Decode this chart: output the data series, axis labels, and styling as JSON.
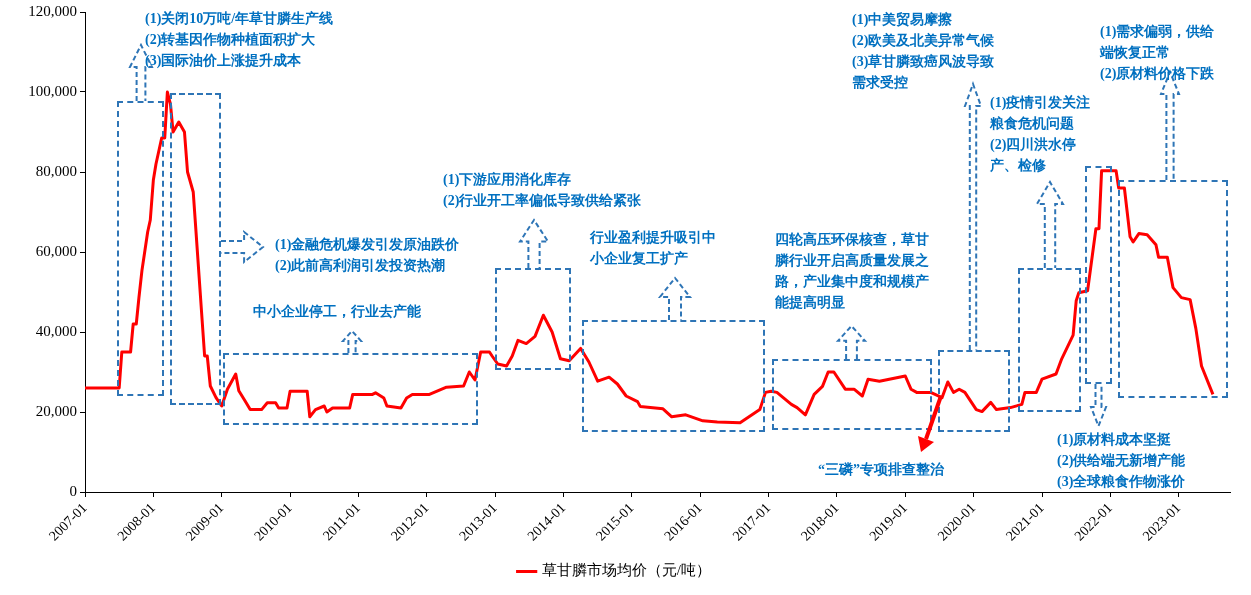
{
  "chart_data": {
    "type": "line",
    "x": [
      "2007-01-01",
      "2007-07-01",
      "2007-07-15",
      "2007-09-01",
      "2007-09-15",
      "2007-10-01",
      "2007-10-15",
      "2007-11-01",
      "2007-12-01",
      "2007-12-15",
      "2008-01-01",
      "2008-01-15",
      "2008-02-15",
      "2008-03-01",
      "2008-03-15",
      "2008-04-01",
      "2008-04-15",
      "2008-05-15",
      "2008-06-15",
      "2008-07-01",
      "2008-08-01",
      "2008-08-15",
      "2008-09-15",
      "2008-10-01",
      "2008-10-15",
      "2008-11-01",
      "2008-12-01",
      "2009-01-01",
      "2009-02-01",
      "2009-03-15",
      "2009-04-01",
      "2009-05-01",
      "2009-06-01",
      "2009-08-01",
      "2009-09-01",
      "2009-10-15",
      "2009-11-01",
      "2009-12-15",
      "2010-01-01",
      "2010-04-01",
      "2010-04-15",
      "2010-05-15",
      "2010-07-01",
      "2010-07-15",
      "2010-08-15",
      "2010-11-15",
      "2010-12-01",
      "2011-03-15",
      "2011-04-01",
      "2011-05-15",
      "2011-06-01",
      "2011-08-15",
      "2011-09-15",
      "2011-10-15",
      "2012-01-15",
      "2012-04-15",
      "2012-07-15",
      "2012-08-15",
      "2012-09-15",
      "2012-10-15",
      "2012-12-01",
      "2012-12-15",
      "2013-01-15",
      "2013-03-01",
      "2013-04-01",
      "2013-05-01",
      "2013-06-15",
      "2013-08-01",
      "2013-09-15",
      "2013-11-01",
      "2013-12-15",
      "2014-02-01",
      "2014-04-01",
      "2014-05-15",
      "2014-07-01",
      "2014-09-01",
      "2014-10-15",
      "2014-12-01",
      "2015-02-01",
      "2015-02-15",
      "2015-06-15",
      "2015-08-01",
      "2015-10-15",
      "2016-01-15",
      "2016-04-01",
      "2016-08-01",
      "2016-11-15",
      "2016-12-15",
      "2017-01-15",
      "2017-02-15",
      "2017-05-01",
      "2017-06-01",
      "2017-07-15",
      "2017-09-01",
      "2017-10-15",
      "2017-11-15",
      "2017-12-15",
      "2018-02-15",
      "2018-04-01",
      "2018-05-15",
      "2018-06-15",
      "2018-08-15",
      "2019-01-01",
      "2019-02-01",
      "2019-03-01",
      "2019-05-15",
      "2019-07-15",
      "2019-08-15",
      "2019-09-15",
      "2019-10-15",
      "2019-11-15",
      "2020-01-15",
      "2020-02-15",
      "2020-04-01",
      "2020-05-01",
      "2020-07-15",
      "2020-09-15",
      "2020-10-01",
      "2020-12-01",
      "2021-01-01",
      "2021-03-15",
      "2021-04-15",
      "2021-06-15",
      "2021-07-01",
      "2021-07-15",
      "2021-09-01",
      "2021-10-15",
      "2021-11-01",
      "2021-11-15",
      "2022-02-01",
      "2022-02-15",
      "2022-03-15",
      "2022-04-15",
      "2022-05-01",
      "2022-06-01",
      "2022-07-15",
      "2022-09-01",
      "2022-09-15",
      "2022-11-01",
      "2022-12-01",
      "2023-01-15",
      "2023-03-01",
      "2023-04-01",
      "2023-05-01",
      "2023-07-01"
    ],
    "series": [
      {
        "name": "草甘膦市场均价（元/吨）",
        "color": "#ff0000",
        "values": [
          26000,
          26000,
          35000,
          35000,
          42000,
          42000,
          48500,
          55400,
          65000,
          68000,
          78000,
          82000,
          88500,
          88500,
          100000,
          97000,
          90000,
          92500,
          90000,
          80000,
          75000,
          65600,
          45000,
          34000,
          34000,
          26500,
          23600,
          21500,
          25700,
          29500,
          25300,
          23000,
          20600,
          20600,
          22300,
          22300,
          21000,
          21000,
          25200,
          25200,
          18800,
          20600,
          21500,
          20000,
          21000,
          21000,
          24400,
          24400,
          24800,
          23500,
          21500,
          21000,
          23500,
          24400,
          24400,
          26200,
          26500,
          30000,
          28000,
          35000,
          35000,
          34000,
          32000,
          31500,
          34000,
          37900,
          37100,
          38900,
          44200,
          40000,
          33300,
          32800,
          35900,
          32500,
          27700,
          28700,
          27000,
          24000,
          22600,
          21400,
          20800,
          18800,
          19300,
          17800,
          17500,
          17300,
          20600,
          24900,
          25200,
          24900,
          21900,
          21100,
          19300,
          24400,
          26400,
          30000,
          30000,
          25700,
          25700,
          24000,
          28200,
          27700,
          29000,
          25700,
          24900,
          24900,
          23600,
          27500,
          24900,
          25700,
          24900,
          20600,
          20100,
          22400,
          20600,
          21100,
          21900,
          24900,
          24900,
          28200,
          29500,
          33300,
          39200,
          47800,
          49800,
          50300,
          65800,
          65800,
          80300,
          80300,
          76000,
          76000,
          63800,
          62500,
          64600,
          64300,
          61800,
          58700,
          58700,
          51100,
          48600,
          48100,
          40900,
          31500,
          24400
        ]
      }
    ],
    "xlim": [
      "2007-01",
      "2023-10"
    ],
    "xticks": [
      "2007-01",
      "2008-01",
      "2009-01",
      "2010-01",
      "2011-01",
      "2012-01",
      "2013-01",
      "2014-01",
      "2015-01",
      "2016-01",
      "2017-01",
      "2018-01",
      "2019-01",
      "2020-01",
      "2021-01",
      "2022-01",
      "2023-01"
    ],
    "ylim": [
      0,
      120000
    ],
    "yticks": [
      {
        "value": 0,
        "label": "0"
      },
      {
        "value": 20000,
        "label": "20,000"
      },
      {
        "value": 40000,
        "label": "40,000"
      },
      {
        "value": 60000,
        "label": "60,000"
      },
      {
        "value": 80000,
        "label": "80,000"
      },
      {
        "value": 100000,
        "label": "100,000"
      },
      {
        "value": 120000,
        "label": "120,000"
      }
    ],
    "grid": false,
    "legend": "bottom",
    "marker": "none",
    "line_style": "solid",
    "annotations": [
      "(1)关闭10万吨/年草甘膦生产线\n(2)转基因作物种植面积扩大\n(3)国际油价上涨提升成本",
      "(1)金融危机爆发引发原油跌价\n(2)此前高利润引发投资热潮",
      "中小企业停工，行业去产能",
      "(1)下游应用消化库存\n(2)行业开工率偏低导致供给紧张",
      "行业盈利提升吸引中小企业复工扩产",
      "四轮高压环保核查，草甘膦行业开启高质量发展之路，产业集中度和规模产能提高明显",
      "“三磷”专项排查整治",
      "(1)中美贸易摩擦\n(2)欧美及北美异常气候\n(3)草甘膦致癌风波导致需求受控",
      "(1)疫情引发关注粮食危机问题\n(2)四川洪水停产、检修",
      "(1)需求偏弱，供给端恢复正常\n(2)原材料价格下跌",
      "(1)原材料成本坚挺\n(2)供给端无新增产能\n(3)全球粮食作物涨价"
    ]
  }
}
